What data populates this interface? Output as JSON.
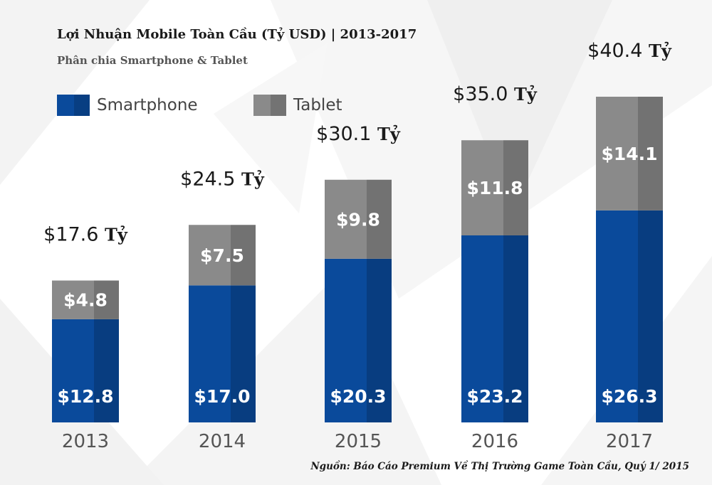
{
  "title": "Lợi Nhuận Mobile Toàn Cầu (Tỷ USD) | 2013-2017",
  "subtitle": "Phân chia Smartphone & Tablet",
  "source": "Nguồn: Báo Cáo Premium Về Thị Trường Game Toàn Cầu, Quý 1/ 2015",
  "colors": {
    "smartphone": "#0a4a9b",
    "tablet": "#8a8a8a"
  },
  "chart_data": {
    "type": "bar",
    "stacked": true,
    "categories": [
      "2013",
      "2014",
      "2015",
      "2016",
      "2017"
    ],
    "series": [
      {
        "name": "Smartphone",
        "values": [
          12.8,
          17.0,
          20.3,
          23.2,
          26.3
        ],
        "labels": [
          "$12.8",
          "$17.0",
          "$20.3",
          "$23.2",
          "$26.3"
        ]
      },
      {
        "name": "Tablet",
        "values": [
          4.8,
          7.5,
          9.8,
          11.8,
          14.1
        ],
        "labels": [
          "$4.8",
          "$7.5",
          "$9.8",
          "$11.8",
          "$14.1"
        ]
      }
    ],
    "totals": [
      17.6,
      24.5,
      30.1,
      35.0,
      40.4
    ],
    "total_labels": [
      "$17.6",
      "$24.5",
      "$30.1",
      "$35.0",
      "$40.4"
    ],
    "total_unit": "Tỷ",
    "ylim": [
      0,
      40.4
    ],
    "grid": false,
    "legend_position": "top-left"
  }
}
